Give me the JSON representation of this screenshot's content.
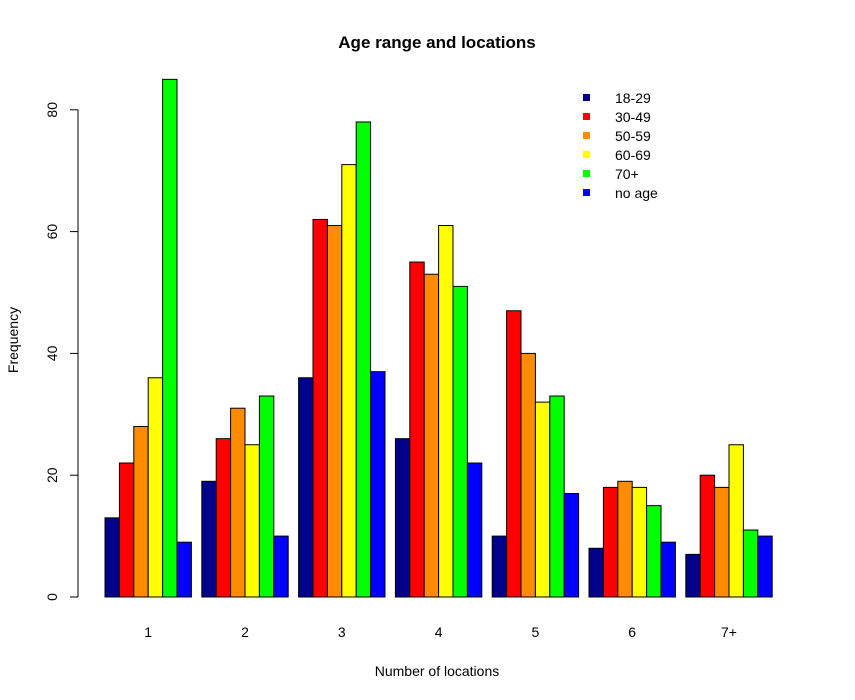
{
  "chart_data": {
    "type": "bar",
    "title": "Age range and locations",
    "xlabel": "Number of locations",
    "ylabel": "Frequency",
    "ylim": [
      0,
      85
    ],
    "yticks": [
      0,
      20,
      40,
      60,
      80
    ],
    "categories": [
      "1",
      "2",
      "3",
      "4",
      "5",
      "6",
      "7+"
    ],
    "legend_position": "top-right",
    "grid": false,
    "series": [
      {
        "name": "18-29",
        "color": "#00008B",
        "values": [
          13,
          19,
          36,
          26,
          10,
          8,
          7
        ]
      },
      {
        "name": "30-49",
        "color": "#FF0000",
        "values": [
          22,
          26,
          62,
          55,
          47,
          18,
          20
        ]
      },
      {
        "name": "50-59",
        "color": "#FF8C00",
        "values": [
          28,
          31,
          61,
          53,
          40,
          19,
          18
        ]
      },
      {
        "name": "60-69",
        "color": "#FFFF00",
        "values": [
          36,
          25,
          71,
          61,
          32,
          18,
          25
        ]
      },
      {
        "name": "70+",
        "color": "#00FF00",
        "values": [
          85,
          33,
          78,
          51,
          33,
          15,
          11
        ]
      },
      {
        "name": "no age",
        "color": "#0000FF",
        "values": [
          9,
          10,
          37,
          22,
          17,
          9,
          10
        ]
      }
    ]
  }
}
